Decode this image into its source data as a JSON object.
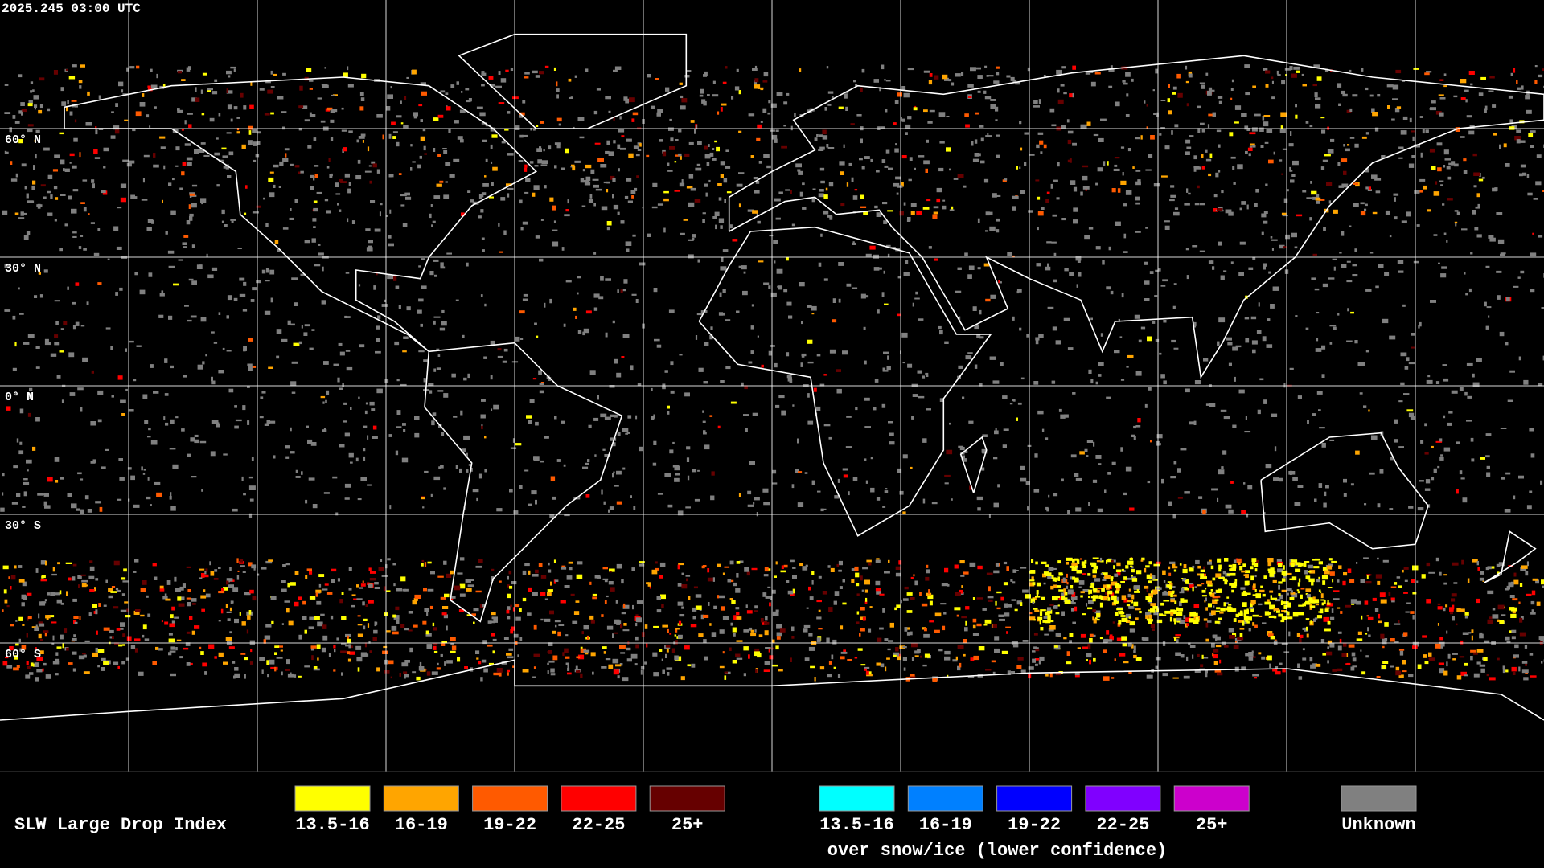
{
  "header": {
    "timestamp": "2025.245 03:00 UTC"
  },
  "map": {
    "latitude_labels": [
      "60° N",
      "30° N",
      "0° N",
      "30° S",
      "60° S"
    ]
  },
  "legend": {
    "title": "SLW Large Drop Index",
    "items": [
      {
        "label": "13.5-16",
        "color": "#ffff00"
      },
      {
        "label": "16-19",
        "color": "#ffa500"
      },
      {
        "label": "19-22",
        "color": "#ff5a00"
      },
      {
        "label": "22-25",
        "color": "#ff0000"
      },
      {
        "label": "25+",
        "color": "#660000"
      }
    ],
    "snow_items": [
      {
        "label": "13.5-16",
        "color": "#00ffff"
      },
      {
        "label": "16-19",
        "color": "#0080ff"
      },
      {
        "label": "19-22",
        "color": "#0000ff"
      },
      {
        "label": "22-25",
        "color": "#8000ff"
      },
      {
        "label": "25+",
        "color": "#cc00cc"
      }
    ],
    "snow_caption": "over snow/ice (lower confidence)",
    "unknown": {
      "label": "Unknown",
      "color": "#808080"
    }
  }
}
